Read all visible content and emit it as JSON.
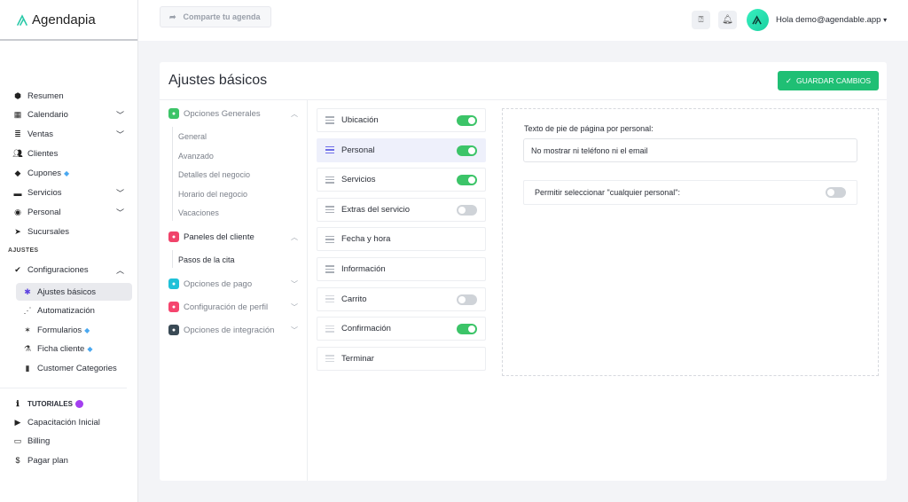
{
  "brand": {
    "name": "Agendapia"
  },
  "topbar": {
    "share_label": "Comparte tu agenda",
    "greeting": "Hola demo@agendable.app"
  },
  "sidebar": {
    "items": [
      {
        "label": "Resumen",
        "icon": "cube-icon"
      },
      {
        "label": "Calendario",
        "icon": "calendar-icon",
        "chevron": true
      },
      {
        "label": "Ventas",
        "icon": "database-icon",
        "chevron": true
      },
      {
        "label": "Clientes",
        "icon": "users-icon"
      },
      {
        "label": "Cupones",
        "icon": "tag-icon",
        "premium": true
      },
      {
        "label": "Servicios",
        "icon": "folder-icon",
        "chevron": true
      },
      {
        "label": "Personal",
        "icon": "user-circle-icon",
        "chevron": true
      },
      {
        "label": "Sucursales",
        "icon": "location-arrow-icon"
      }
    ],
    "section_ajustes": "AJUSTES",
    "config": {
      "label": "Configuraciones",
      "sub": [
        {
          "label": "Ajustes básicos",
          "icon": "gear-icon",
          "active": true
        },
        {
          "label": "Automatización",
          "icon": "flow-icon"
        },
        {
          "label": "Formularios",
          "icon": "magic-icon",
          "premium": true
        },
        {
          "label": "Ficha cliente",
          "icon": "flask-icon",
          "premium": true
        },
        {
          "label": "Customer Categories",
          "icon": "id-card-icon"
        }
      ]
    },
    "tutorials": "TUTORIALES",
    "bottom": [
      {
        "label": "Capacitación Inicial",
        "icon": "play-icon"
      },
      {
        "label": "Billing",
        "icon": "credit-card-icon"
      },
      {
        "label": "Pagar plan",
        "icon": "dollar-icon"
      }
    ]
  },
  "main": {
    "title": "Ajustes básicos",
    "save_label": "GUARDAR CAMBIOS",
    "groups": {
      "general": {
        "label": "Opciones Generales",
        "color": "#3cc468",
        "sub": [
          "General",
          "Avanzado",
          "Detalles del negocio",
          "Horario del negocio",
          "Vacaciones"
        ]
      },
      "paneles": {
        "label": "Paneles del cliente",
        "color": "#f0436a",
        "sub": [
          "Pasos de la cita"
        ]
      },
      "pago": {
        "label": "Opciones de pago",
        "color": "#1fc1d8"
      },
      "perfil": {
        "label": "Configuración de perfil",
        "color": "#f5456e"
      },
      "integracion": {
        "label": "Opciones de integración",
        "color": "#3a4a55"
      }
    },
    "steps": [
      {
        "label": "Ubicación",
        "toggle": true
      },
      {
        "label": "Personal",
        "toggle": true,
        "selected": true
      },
      {
        "label": "Servicios",
        "toggle": true
      },
      {
        "label": "Extras del servicio",
        "toggle": false
      },
      {
        "label": "Fecha y hora"
      },
      {
        "label": "Información"
      },
      {
        "label": "Carrito",
        "toggle": false,
        "faint": true
      },
      {
        "label": "Confirmación",
        "toggle": true,
        "faint": true
      },
      {
        "label": "Terminar",
        "faint": true
      }
    ],
    "panel": {
      "footer_label": "Texto de pie de página por personal:",
      "footer_value": "No mostrar ni teléfono ni el email",
      "any_staff_label": "Permitir seleccionar \"cualquier personal\":",
      "any_staff_enabled": false
    }
  }
}
